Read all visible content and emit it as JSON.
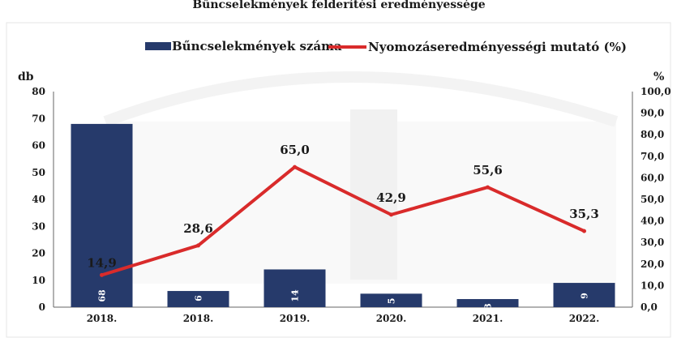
{
  "chart_data": {
    "type": "bar",
    "title": "Bűncselekmények felderítési eredményessége",
    "categories": [
      "2018.",
      "2018.",
      "2019.",
      "2020.",
      "2021.",
      "2022."
    ],
    "series": [
      {
        "name": "Bűncselekmények száma",
        "type": "bar",
        "axis": "left",
        "color": "#263a6b",
        "values": [
          68,
          6,
          14,
          5,
          3,
          9
        ],
        "labels": [
          "68",
          "6",
          "14",
          "5",
          "3",
          "9"
        ]
      },
      {
        "name": "Nyomozáseredményességi mutató (%)",
        "type": "line",
        "axis": "right",
        "color": "#d92b2b",
        "values": [
          14.9,
          28.6,
          65.0,
          42.9,
          55.6,
          35.3
        ],
        "labels": [
          "14,9",
          "28,6",
          "65,0",
          "42,9",
          "55,6",
          "35,3"
        ]
      }
    ],
    "y_left": {
      "label": "db",
      "ylim": [
        0,
        80
      ],
      "ticks": [
        "0",
        "10",
        "20",
        "30",
        "40",
        "50",
        "60",
        "70",
        "80"
      ]
    },
    "y_right": {
      "label": "%",
      "ylim": [
        0,
        100
      ],
      "ticks": [
        "0,0",
        "10,0",
        "20,0",
        "30,0",
        "40,0",
        "50,0",
        "60,0",
        "70,0",
        "80,0",
        "90,0",
        "100,0"
      ]
    },
    "grid": false,
    "legend_position": "top"
  }
}
